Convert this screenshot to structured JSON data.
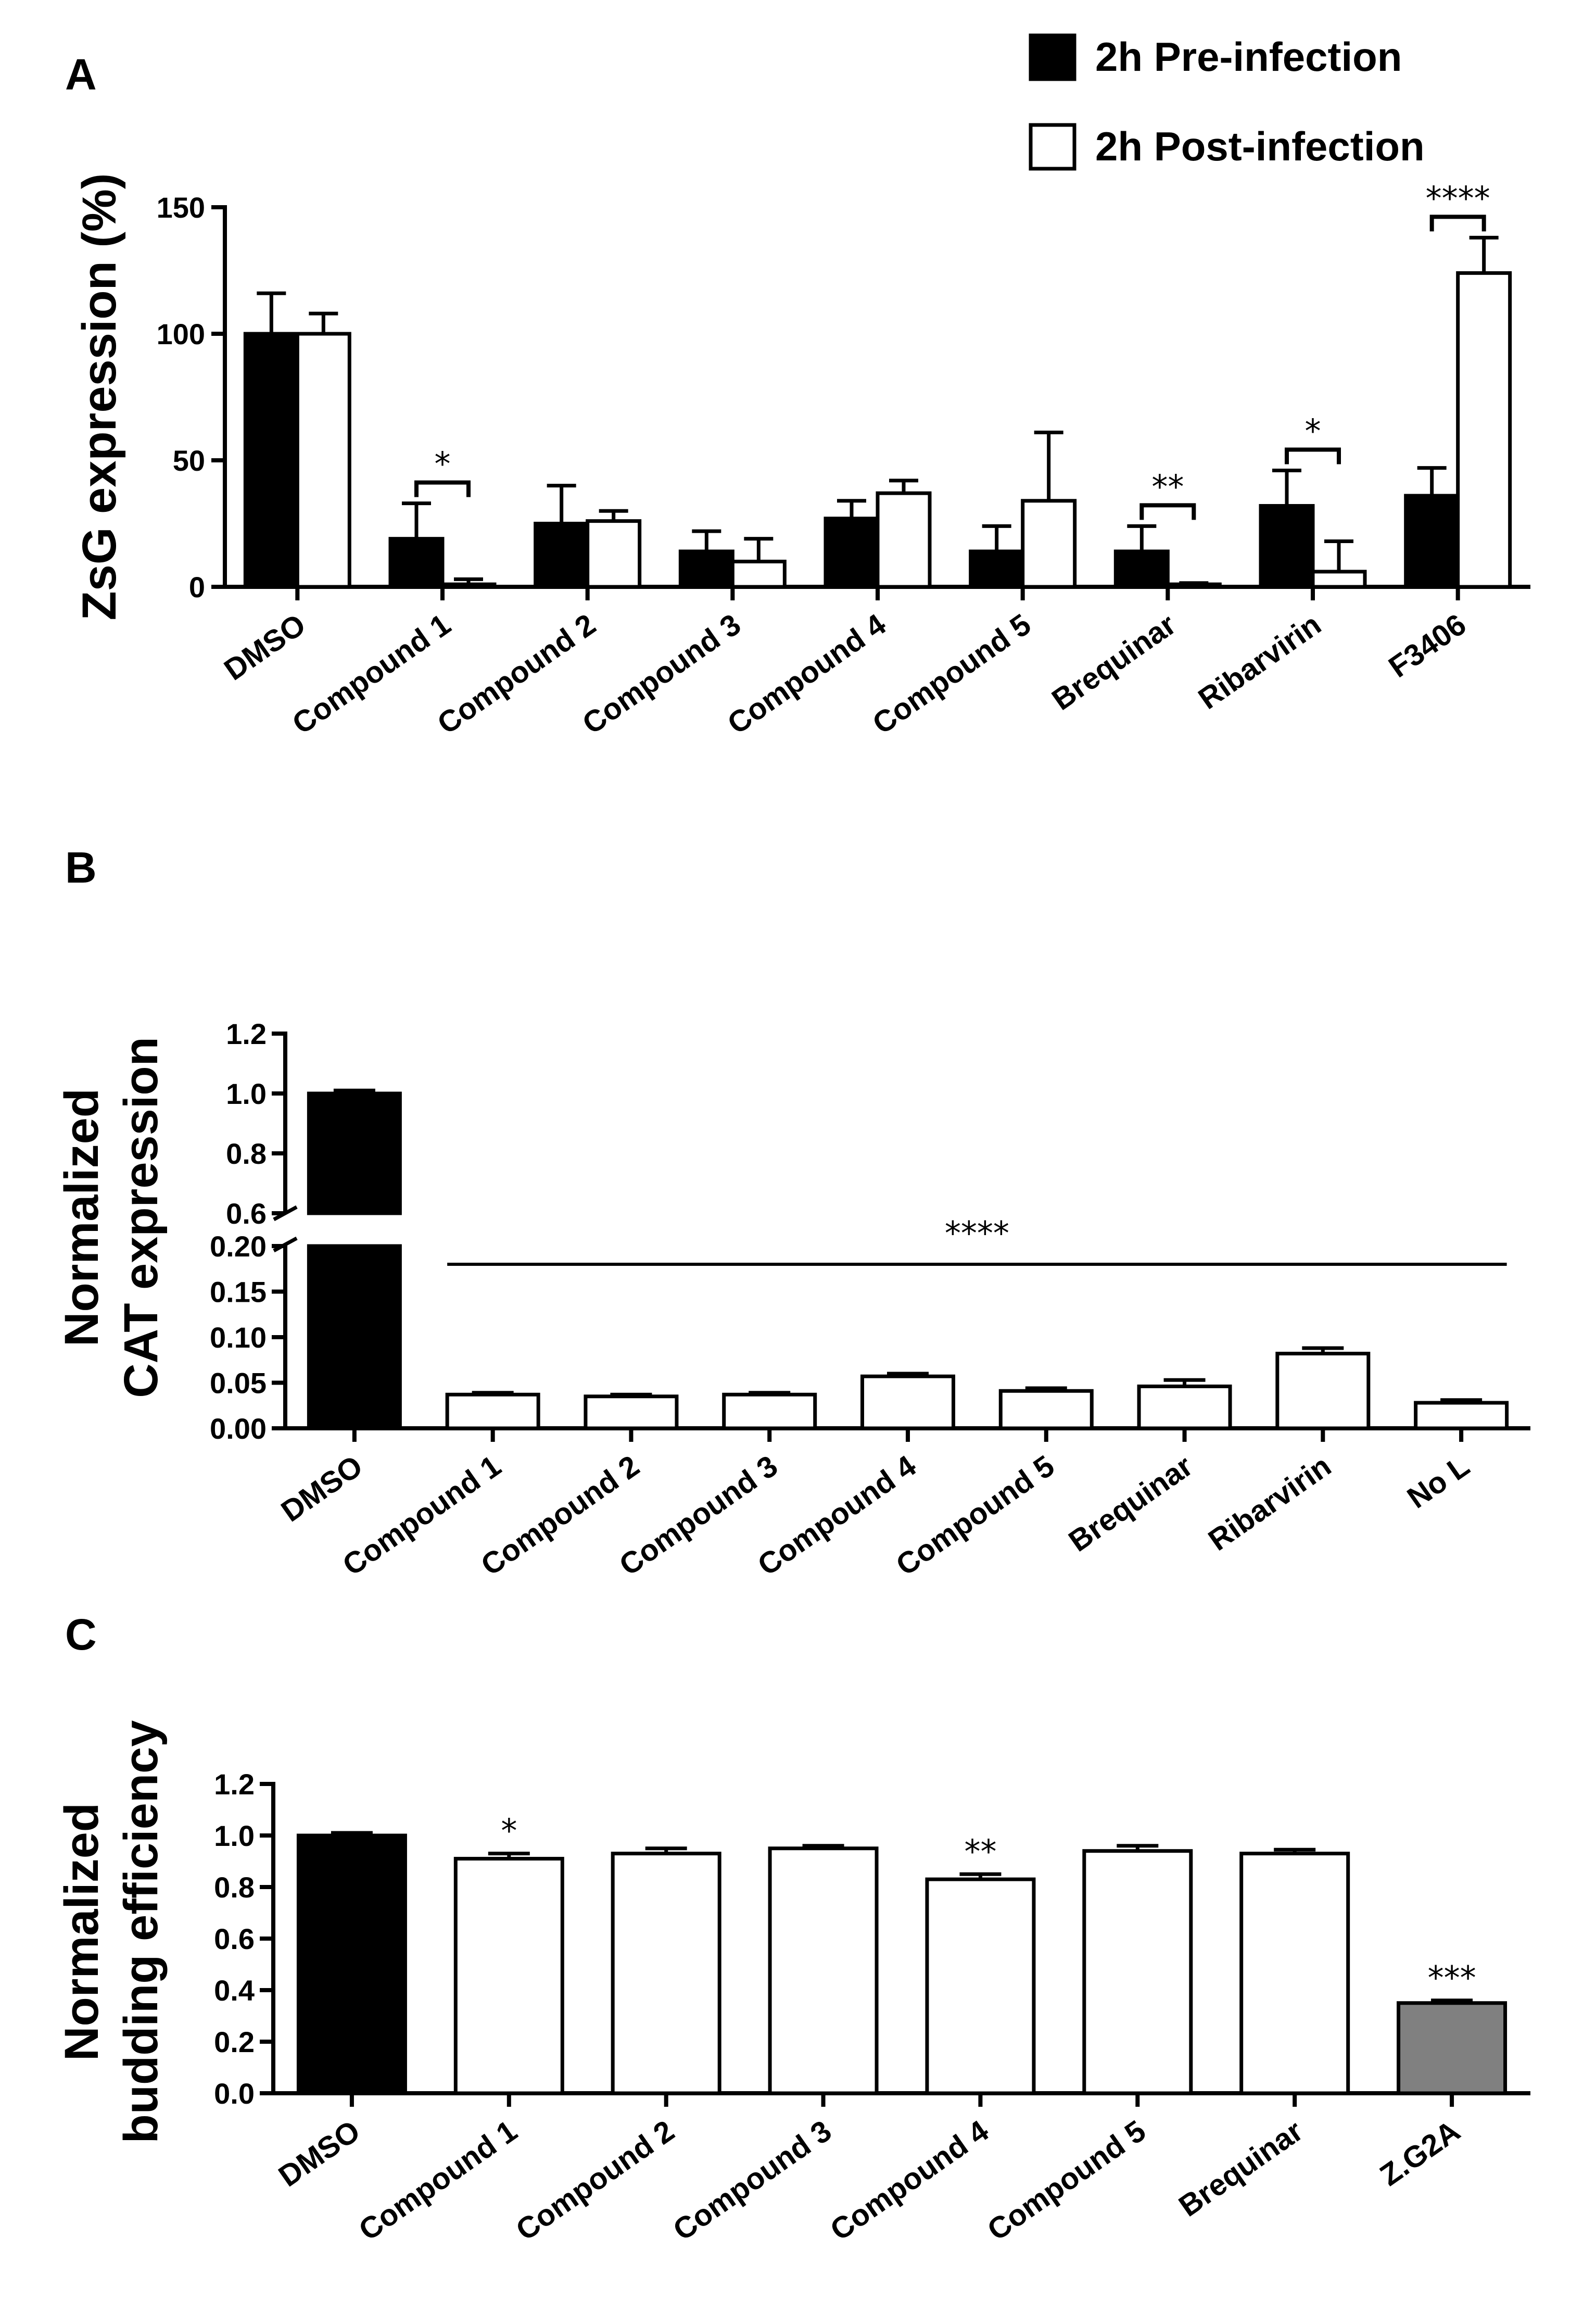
{
  "chart_data": [
    {
      "type": "bar",
      "panel": "A",
      "title": "",
      "xlabel": "",
      "ylabel": "ZsG expression (%)",
      "ylim": [
        0,
        150
      ],
      "yticks": [
        "0",
        "50",
        "100",
        "150"
      ],
      "categories": [
        "DMSO",
        "Compound 1",
        "Compound 2",
        "Compound 3",
        "Compound 4",
        "Compound 5",
        "Brequinar",
        "Ribarvirin",
        "F3406"
      ],
      "series": [
        {
          "name": "2h Pre-infection",
          "color": "#000000",
          "values": [
            100,
            19,
            25,
            14,
            27,
            14,
            14,
            32,
            36
          ],
          "errors": [
            16,
            14,
            15,
            8,
            7,
            10,
            10,
            14,
            11
          ]
        },
        {
          "name": "2h Post-infection",
          "color": "#ffffff",
          "values": [
            100,
            1,
            26,
            10,
            37,
            34,
            1,
            6,
            124
          ],
          "errors": [
            8,
            2,
            4,
            9,
            5,
            27,
            0.5,
            12,
            14
          ]
        }
      ],
      "legend": [
        "2h Pre-infection",
        "2h Post-infection"
      ],
      "significance": [
        {
          "category": "Compound 1",
          "label": "*"
        },
        {
          "category": "Brequinar",
          "label": "**"
        },
        {
          "category": "Ribarvirin",
          "label": "*"
        },
        {
          "category": "F3406",
          "label": "****"
        }
      ]
    },
    {
      "type": "bar",
      "panel": "B",
      "title": "",
      "xlabel": "",
      "ylabel_lines": [
        "Normalized",
        "CAT expression"
      ],
      "axis_break": true,
      "ylim_lower": [
        0,
        0.2
      ],
      "ylim_upper": [
        0.6,
        1.2
      ],
      "yticks_lower": [
        "0.00",
        "0.05",
        "0.10",
        "0.15",
        "0.20"
      ],
      "yticks_upper": [
        "0.6",
        "0.8",
        "1.0",
        "1.2"
      ],
      "categories": [
        "DMSO",
        "Compound 1",
        "Compound 2",
        "Compound 3",
        "Compound 4",
        "Compound 5",
        "Brequinar",
        "Ribarvirin",
        "No L"
      ],
      "values": [
        1.0,
        0.037,
        0.035,
        0.037,
        0.057,
        0.041,
        0.046,
        0.082,
        0.028
      ],
      "errors": [
        0.01,
        0.002,
        0.002,
        0.002,
        0.003,
        0.003,
        0.007,
        0.006,
        0.003
      ],
      "colors": [
        "#000000",
        "#ffffff",
        "#ffffff",
        "#ffffff",
        "#ffffff",
        "#ffffff",
        "#ffffff",
        "#ffffff",
        "#ffffff"
      ],
      "significance": [
        {
          "from": "Compound 1",
          "to": "No L",
          "label": "****"
        }
      ]
    },
    {
      "type": "bar",
      "panel": "C",
      "title": "",
      "xlabel": "",
      "ylabel_lines": [
        "Normalized",
        "budding efficiency"
      ],
      "ylim": [
        0,
        1.2
      ],
      "yticks": [
        "0.0",
        "0.2",
        "0.4",
        "0.6",
        "0.8",
        "1.0",
        "1.2"
      ],
      "categories": [
        "DMSO",
        "Compound 1",
        "Compound 2",
        "Compound 3",
        "Compound 4",
        "Compound 5",
        "Brequinar",
        "Z.G2A"
      ],
      "values": [
        1.0,
        0.91,
        0.93,
        0.95,
        0.83,
        0.94,
        0.93,
        0.35
      ],
      "errors": [
        0.01,
        0.02,
        0.02,
        0.01,
        0.02,
        0.02,
        0.015,
        0.01
      ],
      "colors": [
        "#000000",
        "#ffffff",
        "#ffffff",
        "#ffffff",
        "#ffffff",
        "#ffffff",
        "#ffffff",
        "#808080"
      ],
      "significance": [
        {
          "category": "Compound 1",
          "label": "*"
        },
        {
          "category": "Compound 4",
          "label": "**"
        },
        {
          "category": "Z.G2A",
          "label": "***"
        }
      ]
    }
  ],
  "panels": {
    "a": "A",
    "b": "B",
    "c": "C"
  }
}
